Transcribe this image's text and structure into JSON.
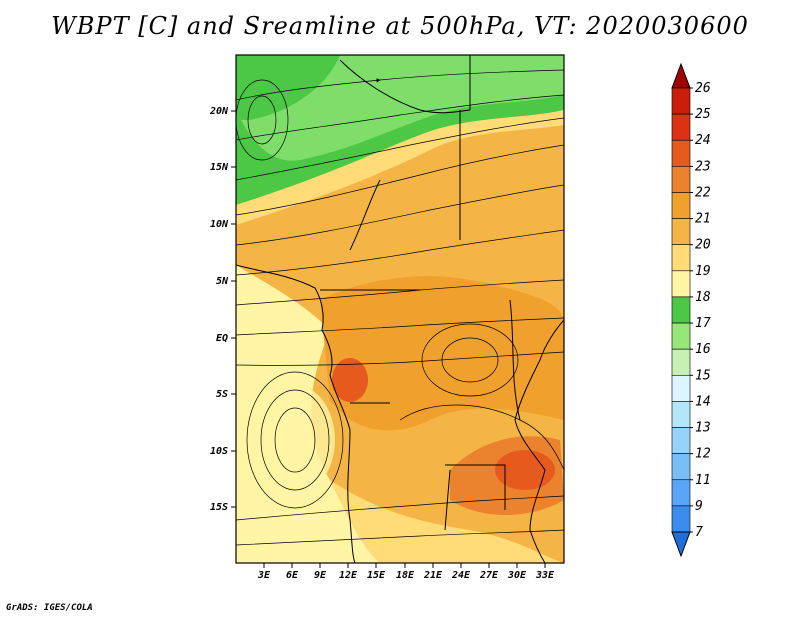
{
  "title": "WBPT [C] and Sreamline at 500hPa, VT: 2020030600",
  "credit": "GrADS: IGES/COLA",
  "map": {
    "lat_range": [
      -20,
      24
    ],
    "lon_range": [
      0,
      35
    ],
    "lat_ticks": [
      "20N",
      "15N",
      "10N",
      "5N",
      "EQ",
      "5S",
      "10S",
      "15S"
    ],
    "lon_ticks": [
      "3E",
      "6E",
      "9E",
      "12E",
      "15E",
      "18E",
      "21E",
      "24E",
      "27E",
      "30E",
      "33E"
    ]
  },
  "colorbar": {
    "levels": [
      "7",
      "9",
      "11",
      "12",
      "13",
      "14",
      "15",
      "16",
      "17",
      "18",
      "19",
      "20",
      "21",
      "22",
      "23",
      "24",
      "25",
      "26"
    ],
    "colors": [
      "#1e6fdc",
      "#3c8cf0",
      "#5aa5f5",
      "#78bef7",
      "#97d2fa",
      "#b4e6fa",
      "#dcf5ff",
      "#c8f0b4",
      "#96e678",
      "#4cc846",
      "#fff5a5",
      "#ffdc78",
      "#f5b446",
      "#f0a02d",
      "#eb822d",
      "#e65a1e",
      "#dc3214",
      "#c81e0a",
      "#a00000"
    ]
  }
}
